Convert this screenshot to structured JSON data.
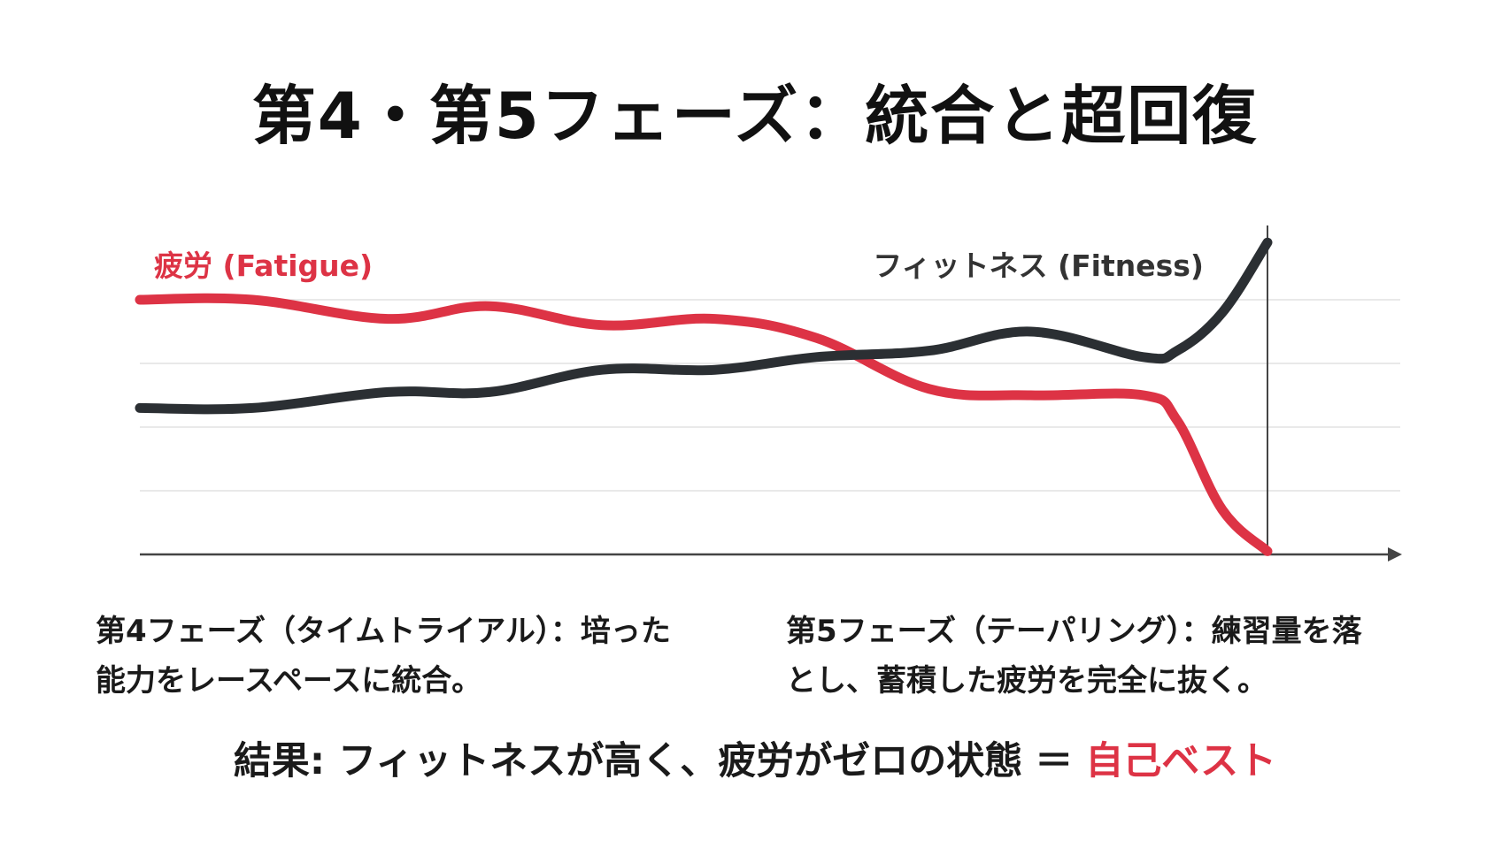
{
  "title": "第4・第5フェーズ：統合と超回復",
  "colors": {
    "fatigue": "#dd3345",
    "fitness": "#2b2f33",
    "grid": "#e2e2e2",
    "axis": "#444444",
    "highlight": "#dd3345"
  },
  "chart_data": {
    "type": "line",
    "grid": true,
    "axes": "y-axis shown only at final point; x-axis with arrow",
    "ylim": [
      0,
      5
    ],
    "xlim": [
      0,
      10
    ],
    "series": [
      {
        "name": "疲労 (Fatigue)",
        "color": "#dd3345",
        "x": [
          0,
          1,
          2.2,
          3.1,
          4.1,
          5.1,
          6,
          7,
          7.9,
          8.9,
          9.2,
          9.6,
          10
        ],
        "y": [
          4.0,
          4.0,
          3.7,
          3.9,
          3.6,
          3.7,
          3.4,
          2.6,
          2.5,
          2.5,
          2.1,
          0.7,
          0.05
        ]
      },
      {
        "name": "フィットネス (Fitness)",
        "color": "#2b2f33",
        "x": [
          0,
          1,
          2.2,
          3.1,
          4.1,
          5.1,
          6,
          7,
          7.9,
          8.9,
          9.2,
          9.6,
          10
        ],
        "y": [
          2.3,
          2.3,
          2.55,
          2.55,
          2.9,
          2.9,
          3.1,
          3.2,
          3.5,
          3.1,
          3.2,
          3.8,
          4.9
        ]
      }
    ],
    "grid_y": [
      1,
      2,
      3,
      4
    ]
  },
  "descriptions": {
    "phase4": {
      "line1": "第4フェーズ（タイムトライアル）：培った",
      "line2": "能力をレースペースに統合。"
    },
    "phase5": {
      "line1": "第5フェーズ（テーパリング）：練習量を落",
      "line2": "とし、蓄積した疲労を完全に抜く。"
    }
  },
  "result": {
    "prefix": "結果: フィットネスが高く、疲労がゼロの状態",
    "equals": "＝",
    "highlight": "自己ベスト"
  }
}
